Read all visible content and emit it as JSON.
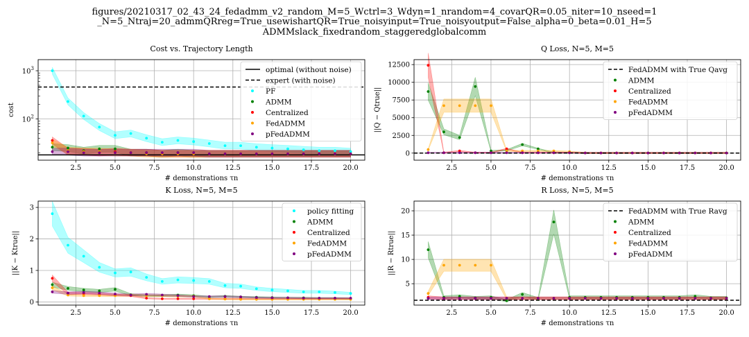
{
  "figure": {
    "title_lines": [
      "figures/20210317_02_43_24_fedadmm_v2_random_M=5_Wctrl=3_Wdyn=1_nrandom=4_covarQR=0.05_niter=10_nseed=1",
      "_N=5_Ntraj=20_admmQRreg=True_usewishartQR=True_noisyinput=True_noisyoutput=False_alpha=0_beta=0.01_H=5",
      "ADMMslack_fixedrandom_staggeredglobalcomm"
    ]
  },
  "chart_data": [
    {
      "id": "cost",
      "type": "scatter",
      "title": "Cost vs. Trajectory Length",
      "xlabel": "# demonstrations τn",
      "ylabel": "cost",
      "yscale": "log",
      "xlim": [
        0.1,
        20.9
      ],
      "ylim": [
        14,
        1700
      ],
      "grid": true,
      "legend_position": "top-right",
      "xticks": [
        2.5,
        5.0,
        7.5,
        10.0,
        12.5,
        15.0,
        17.5,
        20.0
      ],
      "xtick_labels": [
        "2.5",
        "5.0",
        "7.5",
        "10.0",
        "12.5",
        "15.0",
        "17.5",
        "20.0"
      ],
      "yticks": [
        10,
        100,
        1000
      ],
      "ytick_base": "10",
      "ytick_exponents": [
        "1",
        "2",
        "3"
      ],
      "hlines": [
        {
          "name": "optimal (without noise)",
          "y": 18,
          "color": "#000000",
          "style": "solid"
        },
        {
          "name": "expert (with noise)",
          "y": 460,
          "color": "#000000",
          "style": "dashed"
        }
      ],
      "x": [
        1,
        2,
        3,
        4,
        5,
        6,
        7,
        8,
        9,
        10,
        11,
        12,
        13,
        14,
        15,
        16,
        17,
        18,
        19,
        20
      ],
      "series": [
        {
          "name": "PF",
          "color": "#00ffff",
          "values": [
            1000,
            230,
            115,
            68,
            46,
            50,
            40,
            33,
            36,
            34,
            31,
            28,
            28,
            26,
            25,
            24,
            23,
            22,
            22,
            21
          ]
        },
        {
          "name": "ADMM",
          "color": "#008000",
          "values": [
            26,
            25,
            22,
            24,
            24,
            20,
            20,
            19,
            20,
            19,
            19,
            19,
            19,
            19,
            19,
            19,
            19,
            19,
            19,
            19
          ]
        },
        {
          "name": "Centralized",
          "color": "#ff0000",
          "values": [
            36,
            21,
            21,
            20,
            21,
            20,
            20,
            19,
            19,
            19,
            19,
            19,
            19,
            19,
            19,
            19,
            19,
            19,
            19,
            19
          ]
        },
        {
          "name": "FedADMM",
          "color": "#ffa500",
          "values": [
            32,
            22,
            21,
            21,
            20,
            20,
            19,
            19,
            19,
            19,
            19,
            19,
            19,
            19,
            19,
            19,
            19,
            19,
            19,
            19
          ]
        },
        {
          "name": "pFedADMM",
          "color": "#800080",
          "values": [
            21,
            21,
            20,
            20,
            20,
            20,
            20,
            20,
            20,
            20,
            19,
            19,
            19,
            19,
            19,
            19,
            19,
            19,
            19,
            19
          ]
        }
      ]
    },
    {
      "id": "q",
      "type": "scatter",
      "title": "Q Loss, N=5, M=5",
      "xlabel": "# demonstrations τn",
      "ylabel": "||Q − Qtrue||",
      "xlim": [
        0.1,
        20.9
      ],
      "ylim": [
        -1000,
        13200
      ],
      "grid": true,
      "legend_position": "top-right",
      "xticks": [
        2.5,
        5.0,
        7.5,
        10.0,
        12.5,
        15.0,
        17.5,
        20.0
      ],
      "xtick_labels": [
        "2.5",
        "5.0",
        "7.5",
        "10.0",
        "12.5",
        "15.0",
        "17.5",
        "20.0"
      ],
      "yticks": [
        0,
        2500,
        5000,
        7500,
        10000,
        12500
      ],
      "ytick_labels": [
        "0",
        "2500",
        "5000",
        "7500",
        "10000",
        "12500"
      ],
      "hlines": [
        {
          "name": "FedADMM with True Qavg",
          "y": 0,
          "color": "#000000",
          "style": "dashed"
        }
      ],
      "x": [
        1,
        2,
        3,
        4,
        5,
        6,
        7,
        8,
        9,
        10,
        11,
        12,
        13,
        14,
        15,
        16,
        17,
        18,
        19,
        20
      ],
      "series": [
        {
          "name": "ADMM",
          "color": "#008000",
          "values": [
            8700,
            3000,
            2200,
            9400,
            300,
            400,
            1200,
            600,
            50,
            50,
            20,
            20,
            20,
            20,
            20,
            20,
            20,
            20,
            20,
            20
          ]
        },
        {
          "name": "Centralized",
          "color": "#ff0000",
          "values": [
            12400,
            50,
            300,
            50,
            50,
            600,
            50,
            50,
            50,
            50,
            20,
            20,
            20,
            20,
            20,
            20,
            20,
            20,
            20,
            20
          ]
        },
        {
          "name": "FedADMM",
          "color": "#ffa500",
          "values": [
            500,
            6700,
            6700,
            6700,
            6700,
            300,
            300,
            300,
            300,
            200,
            20,
            20,
            20,
            20,
            20,
            20,
            20,
            20,
            20,
            20
          ]
        },
        {
          "name": "pFedADMM",
          "color": "#800080",
          "values": [
            50,
            50,
            50,
            50,
            50,
            50,
            50,
            50,
            50,
            50,
            20,
            20,
            20,
            20,
            20,
            20,
            20,
            20,
            20,
            20
          ]
        }
      ]
    },
    {
      "id": "k",
      "type": "scatter",
      "title": "K Loss, N=5, M=5",
      "xlabel": "# demonstrations τn",
      "ylabel": "||K − Ktrue||",
      "xlim": [
        0.1,
        20.9
      ],
      "ylim": [
        -0.1,
        3.2
      ],
      "grid": true,
      "legend_position": "top-right",
      "xticks": [
        2.5,
        5.0,
        7.5,
        10.0,
        12.5,
        15.0,
        17.5,
        20.0
      ],
      "xtick_labels": [
        "2.5",
        "5.0",
        "7.5",
        "10.0",
        "12.5",
        "15.0",
        "17.5",
        "20.0"
      ],
      "yticks": [
        0,
        1,
        2,
        3
      ],
      "ytick_labels": [
        "0",
        "1",
        "2",
        "3"
      ],
      "x": [
        1,
        2,
        3,
        4,
        5,
        6,
        7,
        8,
        9,
        10,
        11,
        12,
        13,
        14,
        15,
        16,
        17,
        18,
        19,
        20
      ],
      "series": [
        {
          "name": "policy fitting",
          "color": "#00ffff",
          "values": [
            2.8,
            1.8,
            1.45,
            1.1,
            0.92,
            0.95,
            0.78,
            0.65,
            0.7,
            0.68,
            0.65,
            0.52,
            0.5,
            0.42,
            0.38,
            0.35,
            0.32,
            0.32,
            0.3,
            0.27
          ]
        },
        {
          "name": "ADMM",
          "color": "#008000",
          "values": [
            0.55,
            0.43,
            0.38,
            0.35,
            0.4,
            0.23,
            0.2,
            0.2,
            0.22,
            0.2,
            0.16,
            0.18,
            0.16,
            0.15,
            0.14,
            0.13,
            0.13,
            0.12,
            0.12,
            0.11
          ]
        },
        {
          "name": "Centralized",
          "color": "#ff0000",
          "values": [
            0.75,
            0.27,
            0.27,
            0.25,
            0.22,
            0.2,
            0.12,
            0.1,
            0.1,
            0.1,
            0.1,
            0.1,
            0.1,
            0.1,
            0.1,
            0.1,
            0.1,
            0.1,
            0.1,
            0.1
          ]
        },
        {
          "name": "FedADMM",
          "color": "#ffa500",
          "values": [
            0.45,
            0.22,
            0.2,
            0.2,
            0.2,
            0.22,
            0.2,
            0.2,
            0.18,
            0.18,
            0.1,
            0.09,
            0.08,
            0.08,
            0.08,
            0.08,
            0.08,
            0.08,
            0.08,
            0.08
          ]
        },
        {
          "name": "pFedADMM",
          "color": "#800080",
          "values": [
            0.32,
            0.28,
            0.3,
            0.28,
            0.25,
            0.22,
            0.24,
            0.22,
            0.2,
            0.17,
            0.17,
            0.17,
            0.16,
            0.14,
            0.13,
            0.13,
            0.12,
            0.12,
            0.12,
            0.12
          ]
        }
      ]
    },
    {
      "id": "r",
      "type": "scatter",
      "title": "R Loss, N=5, M=5",
      "xlabel": "# demonstrations τn",
      "ylabel": "||R − Rtrue||",
      "xlim": [
        0.1,
        20.9
      ],
      "ylim": [
        0.6,
        22
      ],
      "grid": true,
      "legend_position": "top-right",
      "xticks": [
        2.5,
        5.0,
        7.5,
        10.0,
        12.5,
        15.0,
        17.5,
        20.0
      ],
      "xtick_labels": [
        "2.5",
        "5.0",
        "7.5",
        "10.0",
        "12.5",
        "15.0",
        "17.5",
        "20.0"
      ],
      "yticks": [
        5,
        10,
        15,
        20
      ],
      "ytick_labels": [
        "5",
        "10",
        "15",
        "20"
      ],
      "hlines": [
        {
          "name": "FedADMM with True Ravg",
          "y": 1.6,
          "color": "#000000",
          "style": "dashed"
        }
      ],
      "x": [
        1,
        2,
        3,
        4,
        5,
        6,
        7,
        8,
        9,
        10,
        11,
        12,
        13,
        14,
        15,
        16,
        17,
        18,
        19,
        20
      ],
      "series": [
        {
          "name": "ADMM",
          "color": "#008000",
          "values": [
            12,
            2.2,
            2.4,
            2.1,
            2.2,
            1.5,
            2.8,
            1.9,
            17.7,
            2.2,
            2.2,
            2.2,
            2.2,
            2.2,
            2.2,
            2.2,
            2.2,
            2.4,
            2.1,
            2.1
          ]
        },
        {
          "name": "Centralized",
          "color": "#ff0000",
          "values": [
            2.2,
            2.0,
            2.0,
            2.0,
            2.0,
            2.0,
            2.0,
            2.0,
            2.0,
            2.0,
            2.0,
            2.0,
            2.0,
            2.0,
            2.0,
            2.0,
            2.0,
            2.0,
            2.0,
            2.0
          ]
        },
        {
          "name": "FedADMM",
          "color": "#ffa500",
          "values": [
            3.0,
            8.8,
            8.8,
            8.8,
            8.8,
            2.0,
            2.0,
            2.0,
            2.0,
            2.0,
            2.0,
            2.0,
            2.0,
            2.0,
            2.0,
            2.0,
            2.0,
            2.0,
            2.0,
            2.0
          ]
        },
        {
          "name": "pFedADMM",
          "color": "#800080",
          "values": [
            2.0,
            2.0,
            2.0,
            2.0,
            2.0,
            2.0,
            2.0,
            2.0,
            2.0,
            2.0,
            2.0,
            2.0,
            2.0,
            2.0,
            2.0,
            2.0,
            2.0,
            2.0,
            2.0,
            2.0
          ]
        }
      ]
    }
  ]
}
